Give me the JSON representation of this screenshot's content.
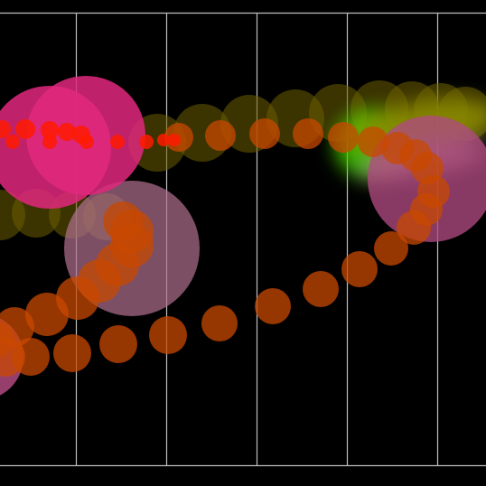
{
  "scene": {
    "background": "#000000",
    "frame_color": "#bdbdbd",
    "colors": {
      "olive": "#6b5d00",
      "orange": "#c84800",
      "red": "#ff1a00",
      "pink": "#e0287e",
      "mauve": "#b07090",
      "green": "#44cc00",
      "gold": "#8a7a00"
    }
  }
}
